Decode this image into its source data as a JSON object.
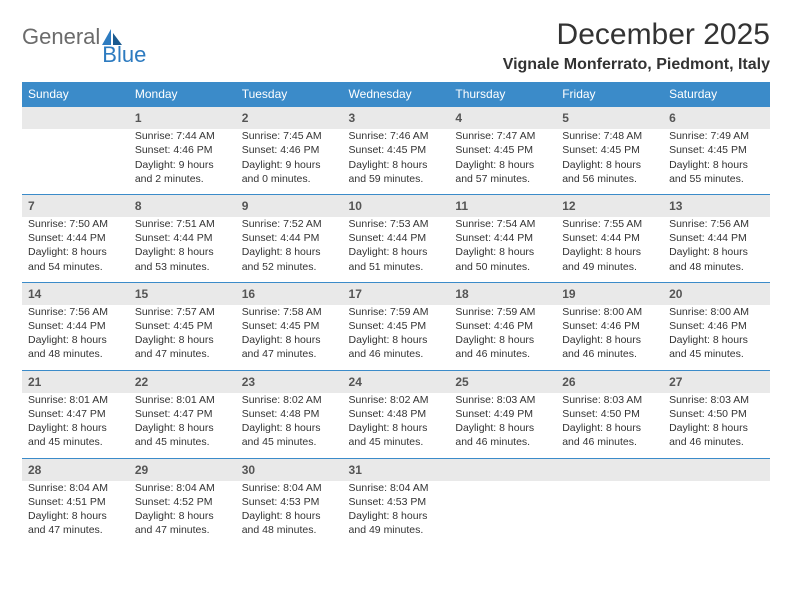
{
  "logo": {
    "text1": "General",
    "text2": "Blue"
  },
  "title": "December 2025",
  "location": "Vignale Monferrato, Piedmont, Italy",
  "colors": {
    "header_bg": "#3b8bc9",
    "header_text": "#ffffff",
    "daynum_bg": "#e9e9e9",
    "border": "#3b8bc9",
    "text": "#333333"
  },
  "day_names": [
    "Sunday",
    "Monday",
    "Tuesday",
    "Wednesday",
    "Thursday",
    "Friday",
    "Saturday"
  ],
  "weeks": [
    [
      null,
      {
        "n": "1",
        "sr": "Sunrise: 7:44 AM",
        "ss": "Sunset: 4:46 PM",
        "dl": "Daylight: 9 hours and 2 minutes."
      },
      {
        "n": "2",
        "sr": "Sunrise: 7:45 AM",
        "ss": "Sunset: 4:46 PM",
        "dl": "Daylight: 9 hours and 0 minutes."
      },
      {
        "n": "3",
        "sr": "Sunrise: 7:46 AM",
        "ss": "Sunset: 4:45 PM",
        "dl": "Daylight: 8 hours and 59 minutes."
      },
      {
        "n": "4",
        "sr": "Sunrise: 7:47 AM",
        "ss": "Sunset: 4:45 PM",
        "dl": "Daylight: 8 hours and 57 minutes."
      },
      {
        "n": "5",
        "sr": "Sunrise: 7:48 AM",
        "ss": "Sunset: 4:45 PM",
        "dl": "Daylight: 8 hours and 56 minutes."
      },
      {
        "n": "6",
        "sr": "Sunrise: 7:49 AM",
        "ss": "Sunset: 4:45 PM",
        "dl": "Daylight: 8 hours and 55 minutes."
      }
    ],
    [
      {
        "n": "7",
        "sr": "Sunrise: 7:50 AM",
        "ss": "Sunset: 4:44 PM",
        "dl": "Daylight: 8 hours and 54 minutes."
      },
      {
        "n": "8",
        "sr": "Sunrise: 7:51 AM",
        "ss": "Sunset: 4:44 PM",
        "dl": "Daylight: 8 hours and 53 minutes."
      },
      {
        "n": "9",
        "sr": "Sunrise: 7:52 AM",
        "ss": "Sunset: 4:44 PM",
        "dl": "Daylight: 8 hours and 52 minutes."
      },
      {
        "n": "10",
        "sr": "Sunrise: 7:53 AM",
        "ss": "Sunset: 4:44 PM",
        "dl": "Daylight: 8 hours and 51 minutes."
      },
      {
        "n": "11",
        "sr": "Sunrise: 7:54 AM",
        "ss": "Sunset: 4:44 PM",
        "dl": "Daylight: 8 hours and 50 minutes."
      },
      {
        "n": "12",
        "sr": "Sunrise: 7:55 AM",
        "ss": "Sunset: 4:44 PM",
        "dl": "Daylight: 8 hours and 49 minutes."
      },
      {
        "n": "13",
        "sr": "Sunrise: 7:56 AM",
        "ss": "Sunset: 4:44 PM",
        "dl": "Daylight: 8 hours and 48 minutes."
      }
    ],
    [
      {
        "n": "14",
        "sr": "Sunrise: 7:56 AM",
        "ss": "Sunset: 4:44 PM",
        "dl": "Daylight: 8 hours and 48 minutes."
      },
      {
        "n": "15",
        "sr": "Sunrise: 7:57 AM",
        "ss": "Sunset: 4:45 PM",
        "dl": "Daylight: 8 hours and 47 minutes."
      },
      {
        "n": "16",
        "sr": "Sunrise: 7:58 AM",
        "ss": "Sunset: 4:45 PM",
        "dl": "Daylight: 8 hours and 47 minutes."
      },
      {
        "n": "17",
        "sr": "Sunrise: 7:59 AM",
        "ss": "Sunset: 4:45 PM",
        "dl": "Daylight: 8 hours and 46 minutes."
      },
      {
        "n": "18",
        "sr": "Sunrise: 7:59 AM",
        "ss": "Sunset: 4:46 PM",
        "dl": "Daylight: 8 hours and 46 minutes."
      },
      {
        "n": "19",
        "sr": "Sunrise: 8:00 AM",
        "ss": "Sunset: 4:46 PM",
        "dl": "Daylight: 8 hours and 46 minutes."
      },
      {
        "n": "20",
        "sr": "Sunrise: 8:00 AM",
        "ss": "Sunset: 4:46 PM",
        "dl": "Daylight: 8 hours and 45 minutes."
      }
    ],
    [
      {
        "n": "21",
        "sr": "Sunrise: 8:01 AM",
        "ss": "Sunset: 4:47 PM",
        "dl": "Daylight: 8 hours and 45 minutes."
      },
      {
        "n": "22",
        "sr": "Sunrise: 8:01 AM",
        "ss": "Sunset: 4:47 PM",
        "dl": "Daylight: 8 hours and 45 minutes."
      },
      {
        "n": "23",
        "sr": "Sunrise: 8:02 AM",
        "ss": "Sunset: 4:48 PM",
        "dl": "Daylight: 8 hours and 45 minutes."
      },
      {
        "n": "24",
        "sr": "Sunrise: 8:02 AM",
        "ss": "Sunset: 4:48 PM",
        "dl": "Daylight: 8 hours and 45 minutes."
      },
      {
        "n": "25",
        "sr": "Sunrise: 8:03 AM",
        "ss": "Sunset: 4:49 PM",
        "dl": "Daylight: 8 hours and 46 minutes."
      },
      {
        "n": "26",
        "sr": "Sunrise: 8:03 AM",
        "ss": "Sunset: 4:50 PM",
        "dl": "Daylight: 8 hours and 46 minutes."
      },
      {
        "n": "27",
        "sr": "Sunrise: 8:03 AM",
        "ss": "Sunset: 4:50 PM",
        "dl": "Daylight: 8 hours and 46 minutes."
      }
    ],
    [
      {
        "n": "28",
        "sr": "Sunrise: 8:04 AM",
        "ss": "Sunset: 4:51 PM",
        "dl": "Daylight: 8 hours and 47 minutes."
      },
      {
        "n": "29",
        "sr": "Sunrise: 8:04 AM",
        "ss": "Sunset: 4:52 PM",
        "dl": "Daylight: 8 hours and 47 minutes."
      },
      {
        "n": "30",
        "sr": "Sunrise: 8:04 AM",
        "ss": "Sunset: 4:53 PM",
        "dl": "Daylight: 8 hours and 48 minutes."
      },
      {
        "n": "31",
        "sr": "Sunrise: 8:04 AM",
        "ss": "Sunset: 4:53 PM",
        "dl": "Daylight: 8 hours and 49 minutes."
      },
      null,
      null,
      null
    ]
  ]
}
